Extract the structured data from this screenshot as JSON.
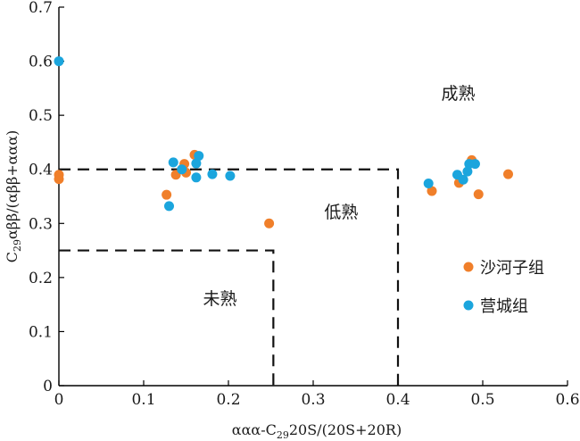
{
  "chart_data": {
    "type": "scatter",
    "xlabel_parts": [
      "ααα-C",
      "29",
      "20S/(20S+20R)"
    ],
    "ylabel_parts": [
      "C",
      "29",
      "αββ/(αββ+ααα)"
    ],
    "xlim": [
      0,
      0.6
    ],
    "ylim": [
      0,
      0.7
    ],
    "xticks": [
      "0",
      "0.1",
      "0.2",
      "0.3",
      "0.4",
      "0.5",
      "0.6"
    ],
    "xtick_values": [
      0,
      0.1,
      0.2,
      0.3,
      0.4,
      0.5,
      0.6
    ],
    "yticks": [
      "0",
      "0.1",
      "0.2",
      "0.3",
      "0.4",
      "0.5",
      "0.6",
      "0.7"
    ],
    "ytick_values": [
      0,
      0.1,
      0.2,
      0.3,
      0.4,
      0.5,
      0.6,
      0.7
    ],
    "grid": false,
    "legend_position": "right",
    "series": [
      {
        "name": "沙河子组",
        "color": "#f07f2a",
        "points": [
          [
            0.0,
            0.39
          ],
          [
            0.0,
            0.382
          ],
          [
            0.127,
            0.353
          ],
          [
            0.138,
            0.39
          ],
          [
            0.148,
            0.41
          ],
          [
            0.15,
            0.394
          ],
          [
            0.16,
            0.427
          ],
          [
            0.248,
            0.3
          ],
          [
            0.44,
            0.36
          ],
          [
            0.472,
            0.375
          ],
          [
            0.487,
            0.417
          ],
          [
            0.495,
            0.354
          ],
          [
            0.53,
            0.391
          ]
        ]
      },
      {
        "name": "营城组",
        "color": "#1ba5dd",
        "points": [
          [
            0.0,
            0.6
          ],
          [
            0.13,
            0.332
          ],
          [
            0.135,
            0.413
          ],
          [
            0.145,
            0.4
          ],
          [
            0.162,
            0.385
          ],
          [
            0.162,
            0.411
          ],
          [
            0.165,
            0.425
          ],
          [
            0.181,
            0.391
          ],
          [
            0.202,
            0.388
          ],
          [
            0.436,
            0.374
          ],
          [
            0.47,
            0.39
          ],
          [
            0.477,
            0.381
          ],
          [
            0.482,
            0.396
          ],
          [
            0.484,
            0.41
          ],
          [
            0.491,
            0.41
          ]
        ]
      }
    ],
    "regions": [
      {
        "label": "未熟",
        "x": 0.17,
        "y": 0.15,
        "bounds": [
          0.253,
          0.25
        ]
      },
      {
        "label": "低熟",
        "x": 0.313,
        "y": 0.31,
        "bounds": [
          0.4,
          0.4
        ]
      },
      {
        "label": "成熟",
        "x": 0.451,
        "y": 0.53
      }
    ]
  }
}
